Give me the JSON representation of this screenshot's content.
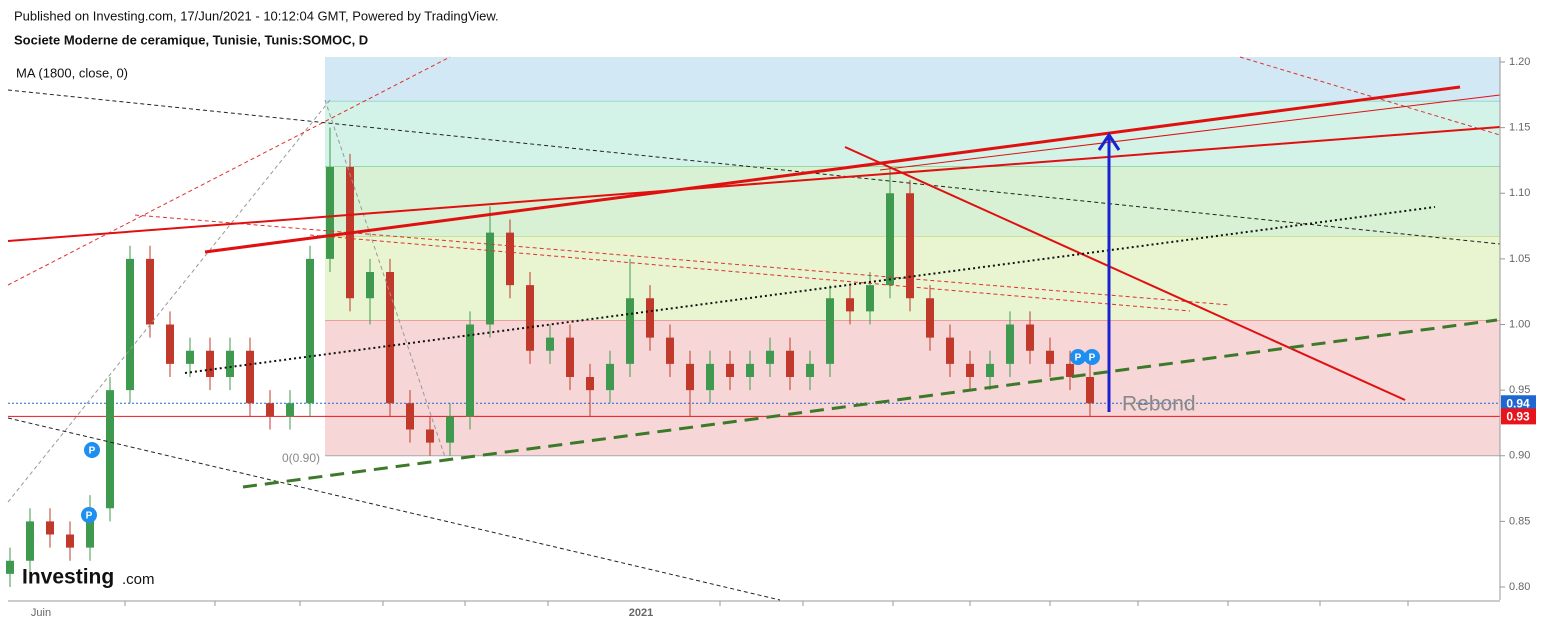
{
  "chart_data": {
    "type": "candlestick",
    "subtitle": "Published on Investing.com, 17/Jun/2021 - 10:12:04 GMT, Powered by TradingView.",
    "title": "Societe Moderne de ceramique, Tunisie, Tunis:SOMOC, D",
    "indicator": "MA (1800, close, 0)",
    "annotation": "Rebond",
    "marker_label": "P",
    "logo": {
      "brand": "Investing",
      "suffix": ".com"
    },
    "fib_label": "0(0.90)",
    "fib_levels": [
      1.17,
      1.12,
      1.067,
      1.003,
      0.9
    ],
    "up_color": "#3f9a4f",
    "down_color": "#c0392b",
    "ylim": [
      0.8,
      1.2
    ],
    "yticks": [
      {
        "value": 0.8,
        "label": "0.80"
      },
      0.85,
      {
        "value": 0.9,
        "label": "0.90"
      },
      0.95,
      {
        "value": 1.0,
        "label": "1.00"
      },
      1.05,
      {
        "value": 1.1,
        "label": "1.10"
      },
      1.15,
      {
        "value": 1.2,
        "label": "1.20"
      }
    ],
    "price_labels": [
      {
        "value": 0.94,
        "color": "#1e66d0"
      },
      {
        "value": 0.93,
        "color": "#e8141c"
      }
    ],
    "categories": [
      null,
      "Juin",
      null,
      null,
      null,
      null,
      null,
      null,
      null,
      null,
      null,
      null,
      null,
      null,
      null,
      null,
      null,
      null,
      null,
      null,
      null,
      null,
      null,
      null,
      null,
      null,
      null,
      null,
      null,
      null,
      null,
      "2021",
      null,
      null,
      null,
      null,
      null,
      null,
      null,
      null,
      null,
      null,
      null,
      null,
      null,
      null,
      null,
      null,
      null,
      null,
      null,
      null,
      null,
      null,
      null
    ],
    "open": [
      0.81,
      0.82,
      0.85,
      0.84,
      0.83,
      0.86,
      0.95,
      1.05,
      1.0,
      0.97,
      0.98,
      0.96,
      0.98,
      0.94,
      0.93,
      0.94,
      1.05,
      1.12,
      1.02,
      1.04,
      0.94,
      0.92,
      0.91,
      0.93,
      1.0,
      1.07,
      1.03,
      0.98,
      0.99,
      0.96,
      0.95,
      0.97,
      1.02,
      0.99,
      0.97,
      0.95,
      0.97,
      0.96,
      0.97,
      0.98,
      0.96,
      0.97,
      1.02,
      1.01,
      1.03,
      1.1,
      1.02,
      0.99,
      0.97,
      0.96,
      0.97,
      1.0,
      0.98,
      0.97,
      0.96
    ],
    "high": [
      0.83,
      0.86,
      0.86,
      0.85,
      0.87,
      0.96,
      1.06,
      1.06,
      1.01,
      0.99,
      0.99,
      0.99,
      0.99,
      0.95,
      0.95,
      1.06,
      1.15,
      1.13,
      1.05,
      1.05,
      0.95,
      0.93,
      0.94,
      1.01,
      1.09,
      1.08,
      1.04,
      1.0,
      1.0,
      0.97,
      0.98,
      1.05,
      1.03,
      1.0,
      0.98,
      0.98,
      0.98,
      0.98,
      0.99,
      0.99,
      0.98,
      1.03,
      1.03,
      1.04,
      1.12,
      1.11,
      1.03,
      1.0,
      0.98,
      0.98,
      1.01,
      1.01,
      0.99,
      0.98,
      0.97
    ],
    "low": [
      0.8,
      0.81,
      0.83,
      0.82,
      0.82,
      0.85,
      0.94,
      0.99,
      0.96,
      0.96,
      0.95,
      0.95,
      0.93,
      0.92,
      0.92,
      0.93,
      1.04,
      1.01,
      1.0,
      0.93,
      0.91,
      0.9,
      0.9,
      0.92,
      0.99,
      1.02,
      0.97,
      0.97,
      0.95,
      0.93,
      0.94,
      0.96,
      0.98,
      0.96,
      0.93,
      0.94,
      0.95,
      0.95,
      0.96,
      0.95,
      0.95,
      0.96,
      1.0,
      1.0,
      1.02,
      1.01,
      0.98,
      0.96,
      0.95,
      0.95,
      0.96,
      0.97,
      0.96,
      0.95,
      0.93
    ],
    "close": [
      0.82,
      0.85,
      0.84,
      0.83,
      0.86,
      0.95,
      1.05,
      1.0,
      0.97,
      0.98,
      0.96,
      0.98,
      0.94,
      0.93,
      0.94,
      1.05,
      1.12,
      1.02,
      1.04,
      0.94,
      0.92,
      0.91,
      0.93,
      1.0,
      1.07,
      1.03,
      0.98,
      0.99,
      0.96,
      0.95,
      0.97,
      1.02,
      0.99,
      0.97,
      0.95,
      0.97,
      0.96,
      0.97,
      0.98,
      0.96,
      0.97,
      1.02,
      1.01,
      1.03,
      1.1,
      1.02,
      0.99,
      0.97,
      0.96,
      0.97,
      1.0,
      0.98,
      0.97,
      0.96,
      0.94
    ]
  }
}
